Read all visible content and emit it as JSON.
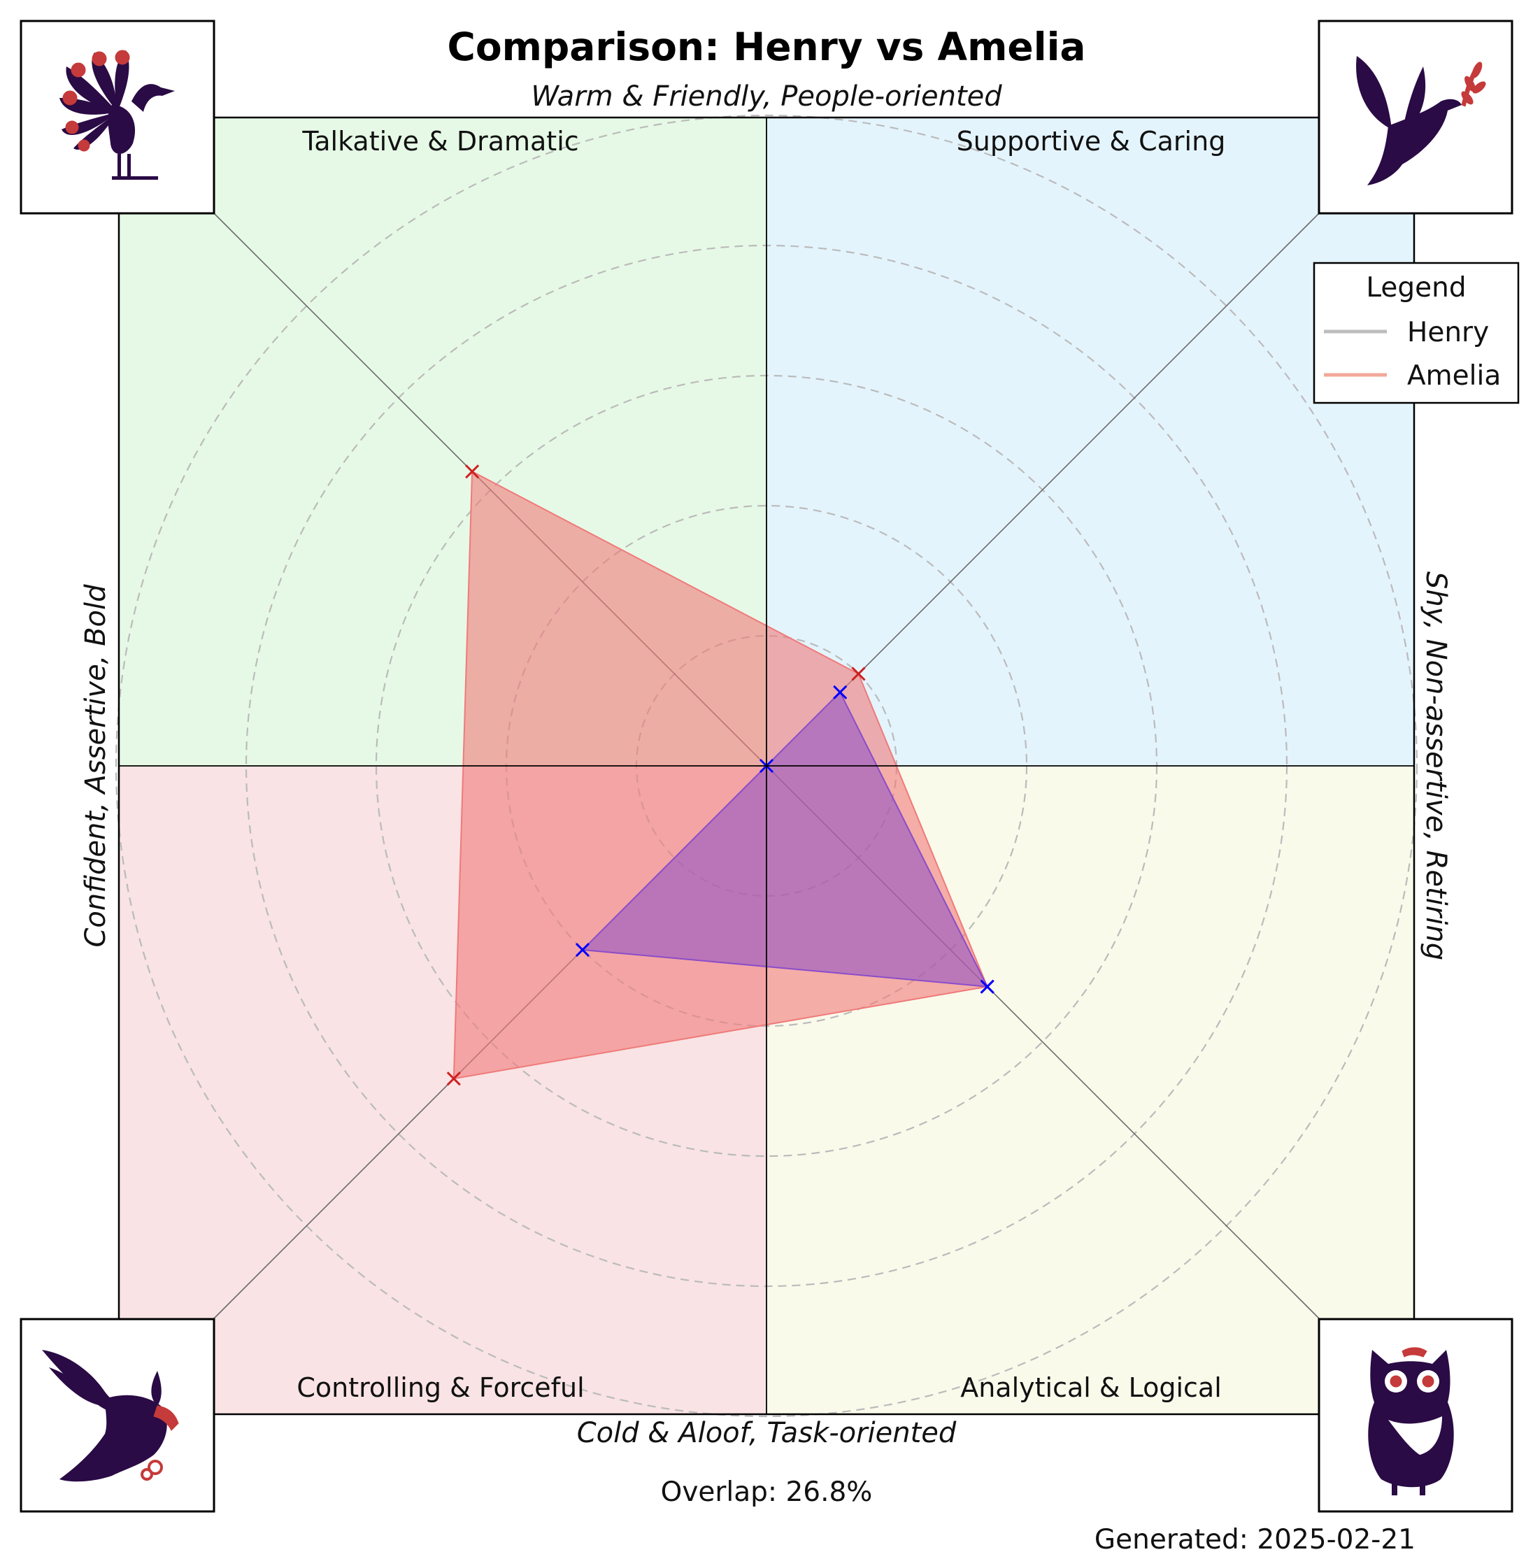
{
  "title": "Comparison: Henry vs Amelia",
  "axis_labels": {
    "top": "Warm & Friendly, People-oriented",
    "bottom": "Cold & Aloof, Task-oriented",
    "left": "Confident, Assertive, Bold",
    "right": "Shy, Non-assertive, Retiring"
  },
  "quadrants": [
    {
      "key": "top-left",
      "label": "Talkative & Dramatic",
      "color": "#e6f9e6",
      "icon": "peacock-icon"
    },
    {
      "key": "top-right",
      "label": "Supportive & Caring",
      "color": "#e4f4fd",
      "icon": "dove-icon"
    },
    {
      "key": "bottom-left",
      "label": "Controlling & Forceful",
      "color": "#f9e3e4",
      "icon": "eagle-icon"
    },
    {
      "key": "bottom-right",
      "label": "Analytical & Logical",
      "color": "#fafaeb",
      "icon": "owl-icon"
    }
  ],
  "legend": {
    "title": "Legend",
    "entries": [
      {
        "name": "Henry",
        "color": "#bdbdbd"
      },
      {
        "name": "Amelia",
        "color": "#f2a89a"
      }
    ]
  },
  "overlap_text": "Overlap: 26.8%",
  "generated_text": "Generated: 2025-02-21",
  "colors": {
    "icon_primary": "#2a0b45",
    "icon_accent": "#c53a3a",
    "henry_fill": "#8a4dc8",
    "henry_marker": "#0000ff",
    "amelia_fill": "#f07a7a",
    "amelia_marker": "#cc2222",
    "grid": "#bbbbbb"
  },
  "chart_data": {
    "type": "radar",
    "axes_order": [
      "Supportive & Caring",
      "Talkative & Dramatic",
      "Controlling & Forceful",
      "Analytical & Logical"
    ],
    "rlim": [
      0,
      5
    ],
    "grid_rings": [
      1,
      2,
      3,
      4,
      5
    ],
    "series": [
      {
        "name": "Henry",
        "values": [
          0.8,
          0.0,
          2.0,
          2.4
        ]
      },
      {
        "name": "Amelia",
        "values": [
          1.0,
          3.2,
          3.4,
          2.4
        ]
      }
    ]
  }
}
